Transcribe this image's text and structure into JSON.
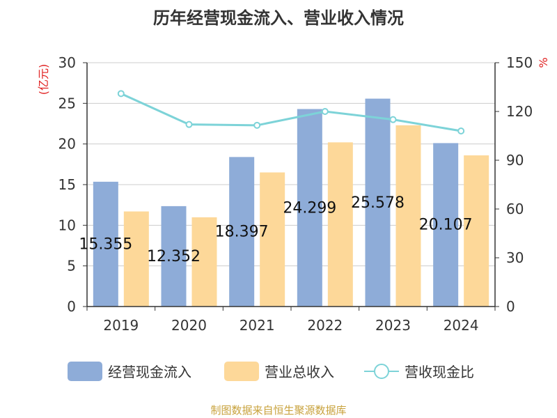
{
  "title": "历年经营现金流入、营业收入情况",
  "source": "制图数据来自恒生聚源数据库",
  "legend": {
    "series1": "经营现金流入",
    "series2": "营业总收入",
    "series3": "营收现金比"
  },
  "colors": {
    "series1": "#8eacd8",
    "series2": "#fdd899",
    "series3": "#7dd3d8",
    "axis_unit": "#e02020",
    "source": "#c8a23c"
  },
  "chart_data": {
    "type": "bar",
    "categories": [
      "2019",
      "2020",
      "2021",
      "2022",
      "2023",
      "2024"
    ],
    "series": [
      {
        "name": "经营现金流入",
        "type": "bar",
        "axis": "left",
        "values": [
          15.355,
          12.352,
          18.397,
          24.299,
          25.578,
          20.107
        ]
      },
      {
        "name": "营业总收入",
        "type": "bar",
        "axis": "left",
        "values": [
          11.7,
          10.98,
          16.5,
          20.2,
          22.3,
          18.6
        ]
      },
      {
        "name": "营收现金比",
        "type": "line",
        "axis": "right",
        "values": [
          131,
          112,
          111.5,
          120,
          115,
          108
        ]
      }
    ],
    "data_labels": [
      "15.355",
      "12.352",
      "18.397",
      "24.299",
      "25.578",
      "20.107"
    ],
    "left_axis": {
      "unit": "(亿元)",
      "ylim": [
        0,
        30
      ],
      "ticks": [
        0,
        5,
        10,
        15,
        20,
        25,
        30
      ]
    },
    "right_axis": {
      "unit": "%",
      "ylim": [
        0,
        150
      ],
      "ticks": [
        0,
        30,
        60,
        90,
        120,
        150
      ]
    },
    "grid": true,
    "legend_position": "bottom"
  }
}
